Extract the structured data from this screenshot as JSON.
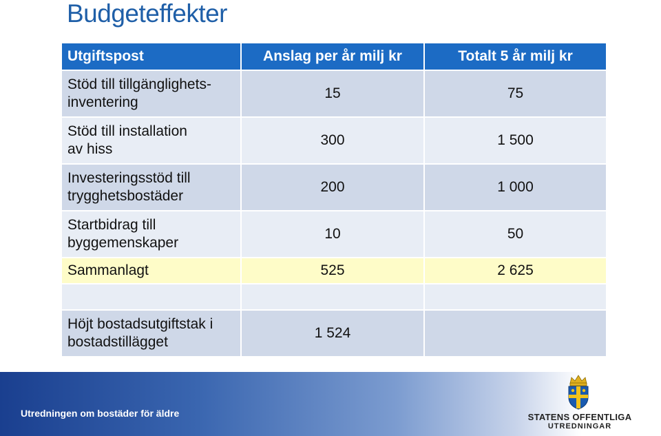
{
  "title": "Budgeteffekter",
  "table": {
    "headers": [
      "Utgiftspost",
      "Anslag per år milj kr",
      "Totalt 5 år milj kr"
    ],
    "rows": [
      {
        "label": "Stöd till tillgänglighets-\ninventering",
        "annual": "15",
        "total": "75"
      },
      {
        "label": "Stöd till installation\nav hiss",
        "annual": "300",
        "total": "1 500"
      },
      {
        "label": "Investeringsstöd till\ntrygghetsbostäder",
        "annual": "200",
        "total": "1 000"
      },
      {
        "label": "Startbidrag till\nbyggemenskaper",
        "annual": "10",
        "total": "50"
      }
    ],
    "sum": {
      "label": "Sammanlagt",
      "annual": "525",
      "total": "2 625"
    },
    "extra": {
      "label": "Höjt bostadsutgiftstak i\nbostadstillägget",
      "annual": "1 524",
      "total": ""
    }
  },
  "footer": {
    "text": "Utredningen om bostäder för äldre",
    "logo_line1": "STATENS OFFENTLIGA",
    "logo_line2": "UTREDNINGAR"
  },
  "colors": {
    "title": "#1f5fa8",
    "header_bg": "#1c6bc4",
    "row_dark": "#cfd8e8",
    "row_light": "#e8edf5",
    "sum_row": "#fefcc8"
  }
}
